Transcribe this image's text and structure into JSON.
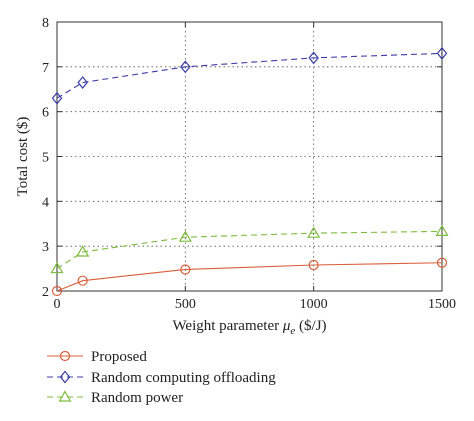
{
  "chart_data": {
    "type": "line",
    "title": "",
    "xlabel_main": "Weight parameter ",
    "xlabel_symbol": "μ",
    "xlabel_subscript": "e",
    "xlabel_unit": " ($/J)",
    "ylabel": "Total cost ($)",
    "x": [
      0,
      100,
      500,
      1000,
      1500
    ],
    "xlim": [
      0,
      1500
    ],
    "ylim": [
      2,
      8
    ],
    "xticks": [
      0,
      500,
      1000,
      1500
    ],
    "yticks": [
      2,
      3,
      4,
      5,
      6,
      7,
      8
    ],
    "grid": true,
    "legend_position": "below-plot",
    "series": [
      {
        "name": "Proposed",
        "marker": "circle",
        "dash": "solid",
        "color": "#d95f3b",
        "values": [
          2.0,
          2.23,
          2.48,
          2.58,
          2.63
        ]
      },
      {
        "name": "Random computing offloading",
        "marker": "diamond",
        "dash": "dashed",
        "color": "#3b3ba8",
        "values": [
          6.3,
          6.65,
          7.0,
          7.2,
          7.3
        ]
      },
      {
        "name": "Random power",
        "marker": "triangle",
        "dash": "dashed",
        "color": "#7dbb3c",
        "values": [
          2.5,
          2.87,
          3.2,
          3.29,
          3.33
        ]
      }
    ]
  }
}
